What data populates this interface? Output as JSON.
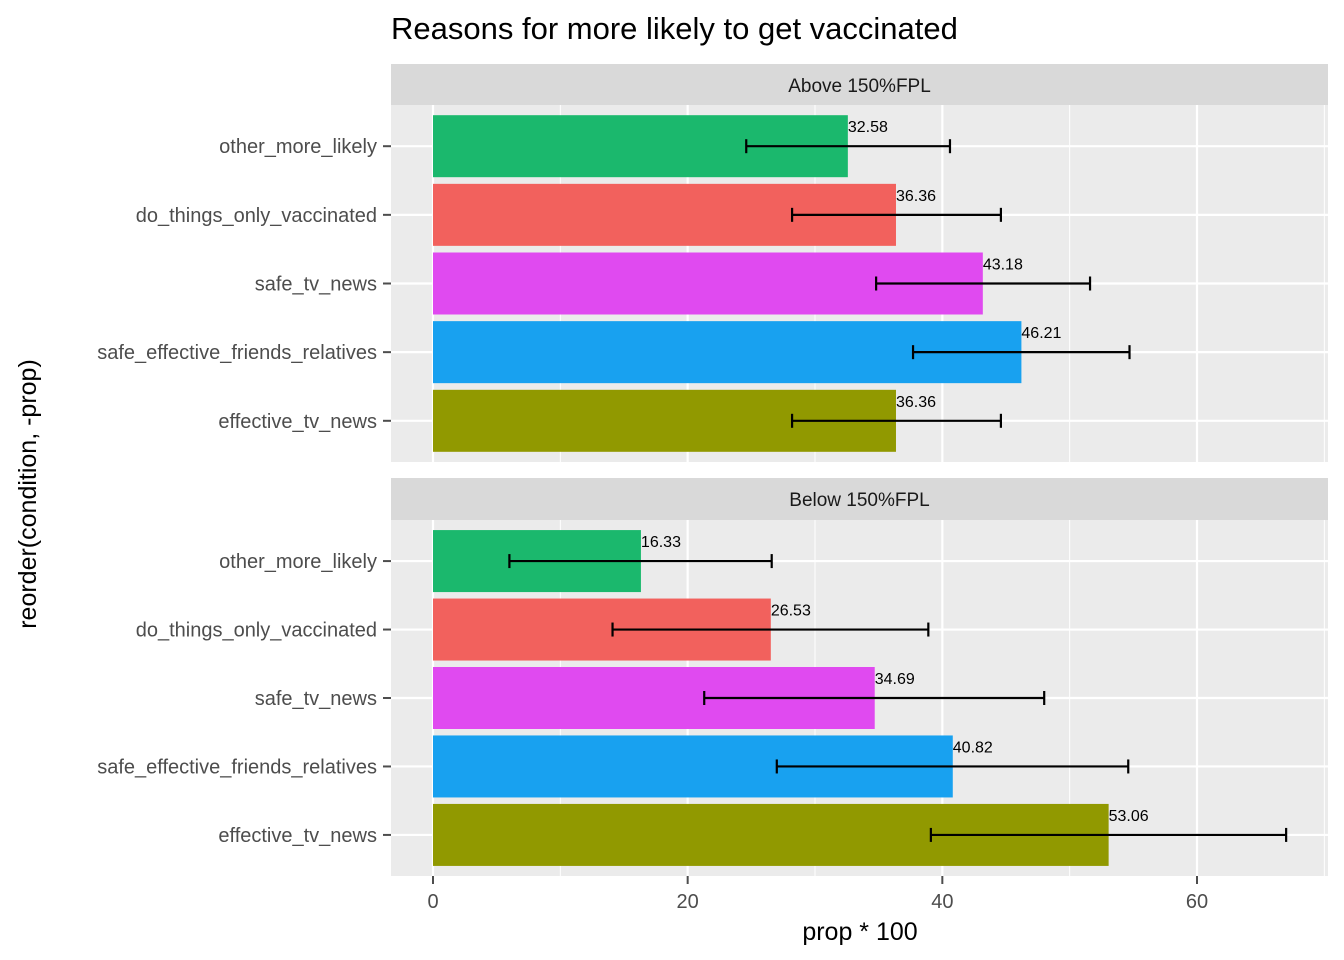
{
  "chart_data": {
    "type": "bar",
    "orientation": "horizontal",
    "title": "Reasons for more likely to get vaccinated",
    "xlabel": "prop * 100",
    "ylabel": "reorder(condition, -prop)",
    "xlim": [
      0,
      70
    ],
    "x_ticks": [
      "0",
      "20",
      "40",
      "60"
    ],
    "grid": true,
    "legend": "none",
    "categories": [
      "other_more_likely",
      "do_things_only_vaccinated",
      "safe_tv_news",
      "safe_effective_friends_relatives",
      "effective_tv_news"
    ],
    "colors": {
      "other_more_likely": "#1BB86D",
      "do_things_only_vaccinated": "#F2615D",
      "safe_tv_news": "#E04AF0",
      "safe_effective_friends_relatives": "#18A1F0",
      "effective_tv_news": "#919900"
    },
    "panels": [
      {
        "label": "Above 150%FPL",
        "bars": [
          {
            "category": "other_more_likely",
            "value": 32.58,
            "label": "32.58",
            "err_low": 24.6,
            "err_high": 40.6
          },
          {
            "category": "do_things_only_vaccinated",
            "value": 36.36,
            "label": "36.36",
            "err_low": 28.2,
            "err_high": 44.6
          },
          {
            "category": "safe_tv_news",
            "value": 43.18,
            "label": "43.18",
            "err_low": 34.8,
            "err_high": 51.6
          },
          {
            "category": "safe_effective_friends_relatives",
            "value": 46.21,
            "label": "46.21",
            "err_low": 37.7,
            "err_high": 54.7
          },
          {
            "category": "effective_tv_news",
            "value": 36.36,
            "label": "36.36",
            "err_low": 28.2,
            "err_high": 44.6
          }
        ]
      },
      {
        "label": "Below 150%FPL",
        "bars": [
          {
            "category": "other_more_likely",
            "value": 16.33,
            "label": "16.33",
            "err_low": 6.0,
            "err_high": 26.6
          },
          {
            "category": "do_things_only_vaccinated",
            "value": 26.53,
            "label": "26.53",
            "err_low": 14.1,
            "err_high": 38.9
          },
          {
            "category": "safe_tv_news",
            "value": 34.69,
            "label": "34.69",
            "err_low": 21.3,
            "err_high": 48.0
          },
          {
            "category": "safe_effective_friends_relatives",
            "value": 40.82,
            "label": "40.82",
            "err_low": 27.0,
            "err_high": 54.6
          },
          {
            "category": "effective_tv_news",
            "value": 53.06,
            "label": "53.06",
            "err_low": 39.1,
            "err_high": 67.0
          }
        ]
      }
    ]
  }
}
